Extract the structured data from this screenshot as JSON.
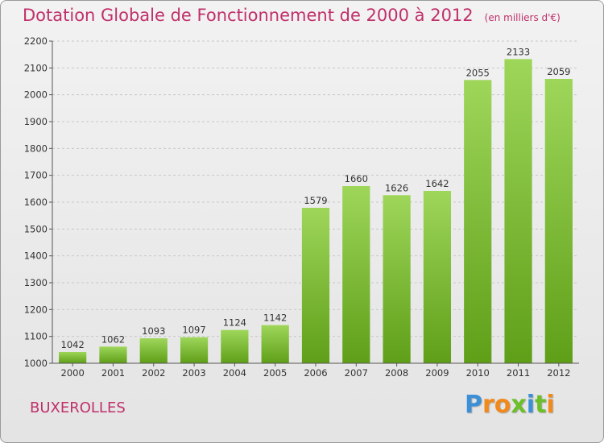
{
  "chart_data": {
    "type": "bar",
    "title": "Dotation Globale de Fonctionnement de 2000 à 2012",
    "subtitle": "(en milliers d'€)",
    "categories": [
      "2000",
      "2001",
      "2002",
      "2003",
      "2004",
      "2005",
      "2006",
      "2007",
      "2008",
      "2009",
      "2010",
      "2011",
      "2012"
    ],
    "values": [
      1042,
      1062,
      1093,
      1097,
      1124,
      1142,
      1579,
      1660,
      1626,
      1642,
      2055,
      2133,
      2059
    ],
    "ylim": [
      1000,
      2200
    ],
    "yticks": [
      1000,
      1100,
      1200,
      1300,
      1400,
      1500,
      1600,
      1700,
      1800,
      1900,
      2000,
      2100,
      2200
    ],
    "grid": true,
    "bar_color": "#7cc431",
    "accent_color": "#c0306a"
  },
  "commune": "BUXEROLLES",
  "logo": {
    "text": "Proxiti",
    "letters": [
      "P",
      "r",
      "o",
      "x",
      "i",
      "t",
      "i"
    ],
    "colors": [
      "#3d8fd6",
      "#f08a1c",
      "#f08a1c",
      "#6cbf2a",
      "#3d8fd6",
      "#6cbf2a",
      "#f08a1c"
    ]
  }
}
